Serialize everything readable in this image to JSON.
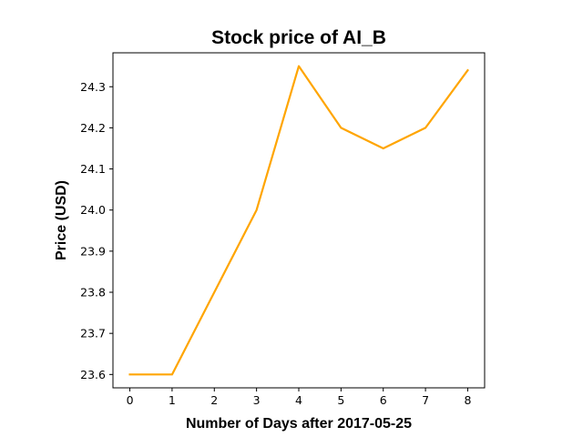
{
  "chart_data": {
    "type": "line",
    "title": "Stock price of AI_B",
    "xlabel": "Number of Days after 2017-05-25",
    "ylabel": "Price (USD)",
    "x": [
      0,
      1,
      2,
      3,
      4,
      5,
      6,
      7,
      8
    ],
    "series": [
      {
        "values": [
          23.6,
          23.6,
          23.8,
          24.0,
          24.35,
          24.2,
          24.15,
          24.2,
          24.34
        ],
        "color": "#ffa500"
      }
    ],
    "xticks": [
      "0",
      "1",
      "2",
      "3",
      "4",
      "5",
      "6",
      "7",
      "8"
    ],
    "yticks": [
      "23.6",
      "23.7",
      "23.8",
      "23.9",
      "24.0",
      "24.1",
      "24.2",
      "24.3"
    ],
    "xlim": [
      -0.4,
      8.4
    ],
    "ylim": [
      23.5675,
      24.3825
    ],
    "grid": false,
    "legend": "none"
  }
}
